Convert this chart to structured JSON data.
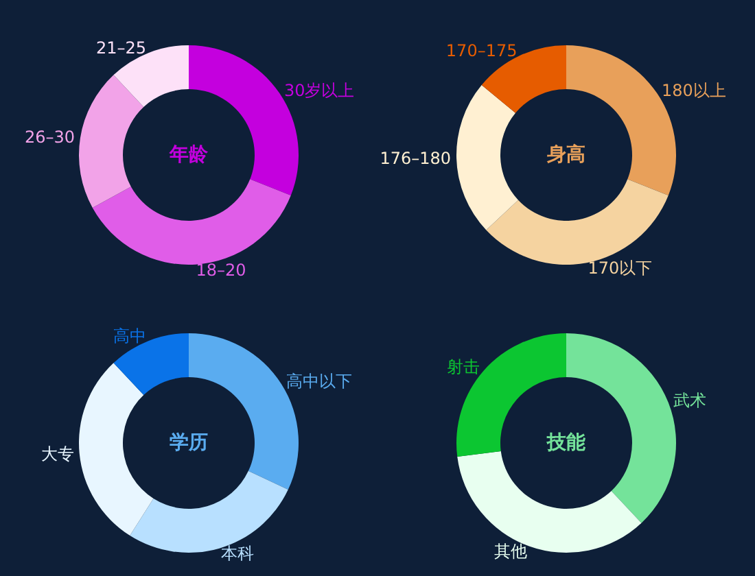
{
  "chart_data": [
    {
      "type": "donut",
      "title": "年龄",
      "categories": [
        "30岁以上",
        "18–20",
        "26–30",
        "21–25"
      ],
      "values": [
        31,
        36,
        21,
        12
      ],
      "colors": [
        "#c400de",
        "#e05de8",
        "#f2a3e8",
        "#fde1f8"
      ]
    },
    {
      "type": "donut",
      "title": "身高",
      "categories": [
        "180以上",
        "170以下",
        "176–180",
        "170–175"
      ],
      "values": [
        31,
        32,
        23,
        14
      ],
      "colors": [
        "#e8a05a",
        "#f5d3a0",
        "#fff0d2",
        "#e65c00"
      ]
    },
    {
      "type": "donut",
      "title": "学历",
      "categories": [
        "高中以下",
        "本科",
        "大专",
        "高中"
      ],
      "values": [
        32,
        27,
        29,
        12
      ],
      "colors": [
        "#5aacf0",
        "#b8e0ff",
        "#e8f6ff",
        "#0a73e8"
      ]
    },
    {
      "type": "donut",
      "title": "技能",
      "categories": [
        "武术",
        "其他",
        "射击"
      ],
      "values": [
        38,
        35,
        27
      ],
      "colors": [
        "#74e39a",
        "#e8fff0",
        "#0cc631"
      ]
    }
  ]
}
